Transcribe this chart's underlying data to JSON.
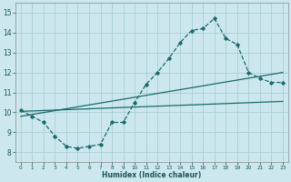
{
  "xlabel": "Humidex (Indice chaleur)",
  "ylabel": "",
  "background_color": "#cce8ee",
  "grid_color": "#aacdd5",
  "line_color": "#1a6b6b",
  "xlim": [
    -0.5,
    23.5
  ],
  "ylim": [
    7.5,
    15.5
  ],
  "xticks": [
    0,
    1,
    2,
    3,
    4,
    5,
    6,
    7,
    8,
    9,
    10,
    11,
    12,
    13,
    14,
    15,
    16,
    17,
    18,
    19,
    20,
    21,
    22,
    23
  ],
  "yticks": [
    8,
    9,
    10,
    11,
    12,
    13,
    14,
    15
  ],
  "main_x": [
    0,
    1,
    2,
    3,
    4,
    5,
    6,
    7,
    8,
    9,
    10,
    11,
    12,
    13,
    14,
    15,
    16,
    17,
    18,
    19,
    20,
    21,
    22,
    23
  ],
  "main_y": [
    10.1,
    9.8,
    9.5,
    8.8,
    8.3,
    8.2,
    8.3,
    8.4,
    9.5,
    9.5,
    10.5,
    11.4,
    12.0,
    12.7,
    13.5,
    14.1,
    14.2,
    14.7,
    13.7,
    13.4,
    12.0,
    11.7,
    11.5,
    11.5
  ],
  "line2_x": [
    0,
    23
  ],
  "line2_y": [
    10.05,
    10.55
  ],
  "line3_x": [
    0,
    23
  ],
  "line3_y": [
    9.8,
    12.0
  ]
}
